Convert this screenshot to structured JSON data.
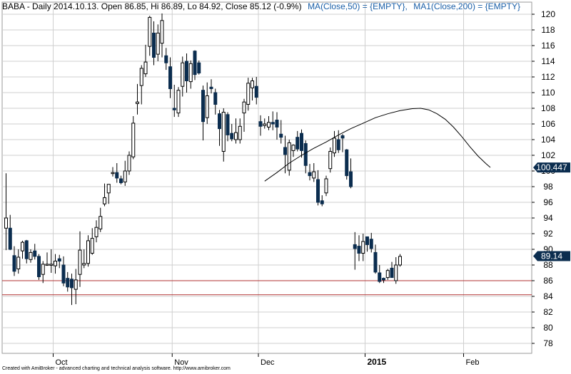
{
  "header": {
    "text": "BABA - Daily 2014.10.13. Open 86.85, Hi 86.89, Lo 84.92, Close 85.12 (-0.9%)",
    "ma50": "MA(Close,50) = {EMPTY},",
    "ma200": "MA1(Close,200) = {EMPTY}"
  },
  "footer": "Created with AmiBroker - advanced charting and technical analysis software. http://www.amibroker.com",
  "colors": {
    "ma_text": "#1a5fa8",
    "bear_candle": "#0b2d4f",
    "bull_candle": "#ffffff",
    "support_line": "#b03030",
    "grid": "#cfcfcf",
    "price_badge": "#0b2d4f"
  },
  "chart_data": {
    "type": "candlestick",
    "ylim": [
      76,
      121
    ],
    "yticks": [
      78,
      80,
      82,
      84,
      86,
      88,
      90,
      92,
      94,
      96,
      98,
      100,
      102,
      104,
      106,
      108,
      110,
      112,
      114,
      116,
      118,
      120
    ],
    "xticks": [
      {
        "label": "Oct",
        "index": 12,
        "bold": false
      },
      {
        "label": "Nov",
        "index": 41,
        "bold": false
      },
      {
        "label": "Dec",
        "index": 62,
        "bold": false
      },
      {
        "label": "2015",
        "index": 88,
        "bold": true
      },
      {
        "label": "Feb",
        "index": 112,
        "bold": false
      }
    ],
    "candles": [
      {
        "o": 92.7,
        "h": 99.7,
        "l": 89.9,
        "c": 94.0
      },
      {
        "o": 92.7,
        "h": 94.4,
        "l": 89.9,
        "c": 90.0
      },
      {
        "o": 89.2,
        "h": 90.4,
        "l": 86.6,
        "c": 87.2
      },
      {
        "o": 87.5,
        "h": 90.0,
        "l": 86.9,
        "c": 89.0
      },
      {
        "o": 89.8,
        "h": 91.1,
        "l": 88.8,
        "c": 90.9
      },
      {
        "o": 91.1,
        "h": 91.2,
        "l": 88.2,
        "c": 88.8
      },
      {
        "o": 88.7,
        "h": 90.0,
        "l": 88.3,
        "c": 89.6
      },
      {
        "o": 89.8,
        "h": 90.7,
        "l": 88.7,
        "c": 89.1
      },
      {
        "o": 89.1,
        "h": 89.4,
        "l": 86.1,
        "c": 86.5
      },
      {
        "o": 86.8,
        "h": 88.5,
        "l": 85.7,
        "c": 88.1
      },
      {
        "o": 88.0,
        "h": 89.6,
        "l": 87.9,
        "c": 88.1
      },
      {
        "o": 88.1,
        "h": 90.0,
        "l": 87.0,
        "c": 88.1
      },
      {
        "o": 87.9,
        "h": 89.4,
        "l": 86.9,
        "c": 88.5
      },
      {
        "o": 88.8,
        "h": 89.3,
        "l": 87.6,
        "c": 88.5
      },
      {
        "o": 88.0,
        "h": 89.1,
        "l": 85.3,
        "c": 85.7
      },
      {
        "o": 86.3,
        "h": 87.1,
        "l": 84.6,
        "c": 85.2
      },
      {
        "o": 86.2,
        "h": 86.9,
        "l": 82.9,
        "c": 85.1
      },
      {
        "o": 84.9,
        "h": 87.5,
        "l": 83.0,
        "c": 86.1
      },
      {
        "o": 86.8,
        "h": 92.3,
        "l": 85.2,
        "c": 89.9
      },
      {
        "o": 88.0,
        "h": 90.0,
        "l": 87.6,
        "c": 88.2
      },
      {
        "o": 88.2,
        "h": 91.8,
        "l": 87.8,
        "c": 91.1
      },
      {
        "o": 89.5,
        "h": 92.7,
        "l": 89.3,
        "c": 91.4
      },
      {
        "o": 91.6,
        "h": 93.7,
        "l": 90.9,
        "c": 92.8
      },
      {
        "o": 92.6,
        "h": 95.3,
        "l": 92.2,
        "c": 94.2
      },
      {
        "o": 95.8,
        "h": 98.4,
        "l": 95.5,
        "c": 96.6
      },
      {
        "o": 97.2,
        "h": 98.2,
        "l": 95.8,
        "c": 98.3
      },
      {
        "o": 99.7,
        "h": 100.5,
        "l": 99.3,
        "c": 99.8
      },
      {
        "o": 99.8,
        "h": 101.0,
        "l": 98.5,
        "c": 99.1
      },
      {
        "o": 99.0,
        "h": 99.4,
        "l": 98.3,
        "c": 98.5
      },
      {
        "o": 98.6,
        "h": 101.3,
        "l": 98.1,
        "c": 100.0
      },
      {
        "o": 100.0,
        "h": 102.5,
        "l": 99.5,
        "c": 102.0
      },
      {
        "o": 101.8,
        "h": 107.0,
        "l": 101.5,
        "c": 106.1
      },
      {
        "o": 108.6,
        "h": 111.1,
        "l": 107.2,
        "c": 108.8
      },
      {
        "o": 110.9,
        "h": 113.5,
        "l": 108.5,
        "c": 113.1
      },
      {
        "o": 112.4,
        "h": 116.1,
        "l": 112.0,
        "c": 113.9
      },
      {
        "o": 115.9,
        "h": 119.8,
        "l": 114.7,
        "c": 119.6
      },
      {
        "o": 117.6,
        "h": 119.1,
        "l": 113.5,
        "c": 114.5
      },
      {
        "o": 114.9,
        "h": 118.7,
        "l": 114.0,
        "c": 117.6
      },
      {
        "o": 116.3,
        "h": 120.1,
        "l": 114.5,
        "c": 119.2
      },
      {
        "o": 114.7,
        "h": 115.7,
        "l": 112.9,
        "c": 113.8
      },
      {
        "o": 113.3,
        "h": 114.5,
        "l": 109.3,
        "c": 110.5
      },
      {
        "o": 108.0,
        "h": 111.0,
        "l": 106.9,
        "c": 107.8
      },
      {
        "o": 107.4,
        "h": 110.7,
        "l": 106.9,
        "c": 110.3
      },
      {
        "o": 110.8,
        "h": 114.6,
        "l": 109.5,
        "c": 113.8
      },
      {
        "o": 114.0,
        "h": 115.0,
        "l": 110.0,
        "c": 111.5
      },
      {
        "o": 111.4,
        "h": 114.1,
        "l": 110.5,
        "c": 113.7
      },
      {
        "o": 115.3,
        "h": 115.4,
        "l": 111.6,
        "c": 112.3
      },
      {
        "o": 113.8,
        "h": 114.1,
        "l": 112.3,
        "c": 112.5
      },
      {
        "o": 110.3,
        "h": 110.9,
        "l": 103.9,
        "c": 106.3
      },
      {
        "o": 106.8,
        "h": 111.3,
        "l": 106.0,
        "c": 109.6
      },
      {
        "o": 110.7,
        "h": 111.7,
        "l": 109.9,
        "c": 110.5
      },
      {
        "o": 110.0,
        "h": 110.5,
        "l": 107.2,
        "c": 108.5
      },
      {
        "o": 107.3,
        "h": 107.8,
        "l": 103.2,
        "c": 105.4
      },
      {
        "o": 102.5,
        "h": 108.0,
        "l": 101.2,
        "c": 107.5
      },
      {
        "o": 107.2,
        "h": 107.5,
        "l": 103.8,
        "c": 104.6
      },
      {
        "o": 104.8,
        "h": 106.0,
        "l": 103.8,
        "c": 104.1
      },
      {
        "o": 104.0,
        "h": 106.7,
        "l": 103.5,
        "c": 104.9
      },
      {
        "o": 104.0,
        "h": 106.7,
        "l": 103.5,
        "c": 105.7
      },
      {
        "o": 107.4,
        "h": 109.2,
        "l": 105.0,
        "c": 108.8
      },
      {
        "o": 108.5,
        "h": 111.9,
        "l": 107.7,
        "c": 111.2
      },
      {
        "o": 110.6,
        "h": 111.9,
        "l": 109.0,
        "c": 111.5
      },
      {
        "o": 110.8,
        "h": 112.0,
        "l": 108.5,
        "c": 109.4
      },
      {
        "o": 106.3,
        "h": 107.1,
        "l": 104.5,
        "c": 105.7
      },
      {
        "o": 105.8,
        "h": 106.7,
        "l": 105.4,
        "c": 106.0
      },
      {
        "o": 105.6,
        "h": 107.0,
        "l": 105.2,
        "c": 106.2
      },
      {
        "o": 106.2,
        "h": 107.6,
        "l": 105.2,
        "c": 106.0
      },
      {
        "o": 106.5,
        "h": 107.5,
        "l": 104.0,
        "c": 105.6
      },
      {
        "o": 104.7,
        "h": 106.5,
        "l": 103.5,
        "c": 104.3
      },
      {
        "o": 103.0,
        "h": 104.5,
        "l": 99.7,
        "c": 102.1
      },
      {
        "o": 100.1,
        "h": 104.0,
        "l": 99.4,
        "c": 103.6
      },
      {
        "o": 102.6,
        "h": 103.4,
        "l": 101.8,
        "c": 103.3
      },
      {
        "o": 104.3,
        "h": 105.1,
        "l": 102.5,
        "c": 102.8
      },
      {
        "o": 104.8,
        "h": 105.3,
        "l": 101.7,
        "c": 102.6
      },
      {
        "o": 103.5,
        "h": 103.9,
        "l": 99.7,
        "c": 100.7
      },
      {
        "o": 99.8,
        "h": 100.9,
        "l": 98.8,
        "c": 99.4
      },
      {
        "o": 99.1,
        "h": 101.0,
        "l": 98.6,
        "c": 99.9
      },
      {
        "o": 98.9,
        "h": 100.1,
        "l": 95.6,
        "c": 96.0
      },
      {
        "o": 96.2,
        "h": 96.9,
        "l": 95.5,
        "c": 95.8
      },
      {
        "o": 97.2,
        "h": 99.4,
        "l": 96.8,
        "c": 99.0
      },
      {
        "o": 100.3,
        "h": 103.0,
        "l": 99.8,
        "c": 102.5
      },
      {
        "o": 102.3,
        "h": 105.1,
        "l": 101.8,
        "c": 104.2
      },
      {
        "o": 104.0,
        "h": 105.2,
        "l": 102.3,
        "c": 102.7
      },
      {
        "o": 104.5,
        "h": 104.7,
        "l": 102.4,
        "c": 104.2
      },
      {
        "o": 102.7,
        "h": 102.8,
        "l": 98.9,
        "c": 99.4
      },
      {
        "o": 99.9,
        "h": 101.6,
        "l": 97.8,
        "c": 98.0
      },
      {
        "o": 90.6,
        "h": 92.2,
        "l": 87.4,
        "c": 90.1
      },
      {
        "o": 90.4,
        "h": 91.8,
        "l": 88.5,
        "c": 89.5
      },
      {
        "o": 89.5,
        "h": 92.0,
        "l": 88.5,
        "c": 91.0
      },
      {
        "o": 91.6,
        "h": 91.6,
        "l": 89.7,
        "c": 90.6
      },
      {
        "o": 91.3,
        "h": 92.1,
        "l": 89.6,
        "c": 90.1
      },
      {
        "o": 89.6,
        "h": 90.6,
        "l": 86.9,
        "c": 87.1
      },
      {
        "o": 87.0,
        "h": 88.0,
        "l": 85.7,
        "c": 85.9
      },
      {
        "o": 86.3,
        "h": 86.4,
        "l": 85.7,
        "c": 86.1
      },
      {
        "o": 86.4,
        "h": 87.5,
        "l": 86.1,
        "c": 87.3
      },
      {
        "o": 87.6,
        "h": 88.4,
        "l": 86.6,
        "c": 86.4
      },
      {
        "o": 86.0,
        "h": 89.0,
        "l": 85.6,
        "c": 88.0
      },
      {
        "o": 88.0,
        "h": 89.4,
        "l": 87.8,
        "c": 89.1
      }
    ],
    "candle_x_positions_note_skip": [],
    "ma_line": [
      {
        "i": 63,
        "v": 98.7
      },
      {
        "i": 66,
        "v": 99.8
      },
      {
        "i": 69,
        "v": 101.0
      },
      {
        "i": 72,
        "v": 102.0
      },
      {
        "i": 75,
        "v": 102.9
      },
      {
        "i": 78,
        "v": 103.7
      },
      {
        "i": 81,
        "v": 104.6
      },
      {
        "i": 84,
        "v": 105.4
      },
      {
        "i": 87,
        "v": 106.1
      },
      {
        "i": 90,
        "v": 106.8
      },
      {
        "i": 93,
        "v": 107.3
      },
      {
        "i": 96,
        "v": 107.7
      },
      {
        "i": 99,
        "v": 107.95
      },
      {
        "i": 101,
        "v": 108.0
      },
      {
        "i": 103,
        "v": 107.8
      },
      {
        "i": 105,
        "v": 107.3
      },
      {
        "i": 107,
        "v": 106.6
      },
      {
        "i": 109,
        "v": 105.6
      },
      {
        "i": 111,
        "v": 104.4
      },
      {
        "i": 113,
        "v": 103.1
      },
      {
        "i": 115,
        "v": 101.9
      },
      {
        "i": 117,
        "v": 100.9
      },
      {
        "i": 118,
        "v": 100.45
      }
    ],
    "support_lines": [
      86.0,
      84.2
    ],
    "last_value_labels": [
      {
        "value": 100.447,
        "text": "100.447"
      },
      {
        "value": 89.14,
        "text": "89.14"
      }
    ]
  }
}
